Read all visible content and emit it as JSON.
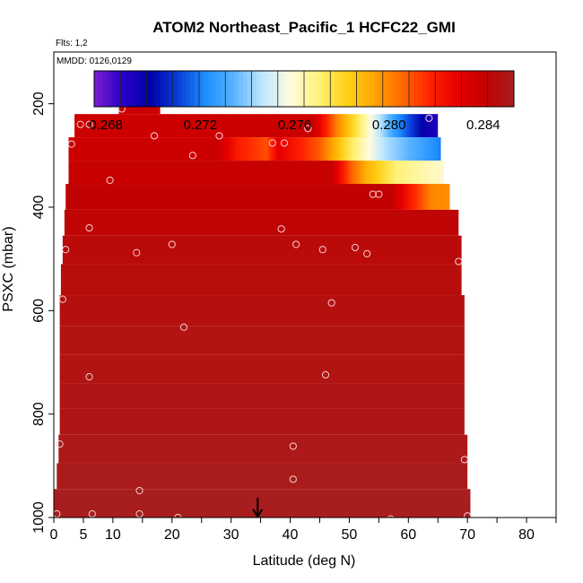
{
  "chart_data": {
    "type": "heatmap",
    "title": "ATOM2 Northeast_Pacific_1 HCFC22_GMI",
    "flights_label": "Flts: 1,2",
    "dates_label": "MMDD: 0126,0129",
    "xlabel": "Latitude (deg N)",
    "ylabel": "PSXC (mbar)",
    "xlim": [
      0,
      85
    ],
    "ylim": [
      1000,
      100
    ],
    "x_ticks": [
      0,
      5,
      10,
      20,
      30,
      40,
      50,
      60,
      70,
      80
    ],
    "x_minor_ticks": [
      0,
      5,
      10,
      15,
      20,
      25,
      30,
      35,
      40,
      45,
      50,
      55,
      60,
      65,
      70,
      75,
      80,
      85
    ],
    "y_ticks": [
      200,
      400,
      600,
      800,
      1000
    ],
    "colorbar": {
      "min": 0.2675,
      "max": 0.2853,
      "ticks": [
        0.268,
        0.272,
        0.276,
        0.28,
        0.284
      ],
      "tick_labels": [
        "0.268",
        "0.272",
        "0.276",
        "0.280",
        "0.284"
      ],
      "colors": [
        "#7b1fd1",
        "#2a00c8",
        "#0000a8",
        "#0a3ed8",
        "#1e90ff",
        "#5ab4ff",
        "#bfe6ff",
        "#fffbe0",
        "#fff27a",
        "#ffd21a",
        "#ffa500",
        "#ff6a00",
        "#ff2200",
        "#e60000",
        "#c40000",
        "#a52020"
      ]
    },
    "layers": [
      {
        "p_top": 170,
        "p_bot": 220,
        "lat_min": 11,
        "lat_max": 18,
        "value": 0.2838
      },
      {
        "p_top": 220,
        "p_bot": 265,
        "lat_min": 3.5,
        "lat_max": 65,
        "value": 0.2838,
        "gradient": [
          [
            44,
            0.2838
          ],
          [
            48,
            0.28
          ],
          [
            52,
            0.277
          ],
          [
            58,
            0.2725
          ],
          [
            63,
            0.2695
          ],
          [
            65,
            0.269
          ]
        ]
      },
      {
        "p_top": 265,
        "p_bot": 310,
        "lat_min": 2.5,
        "lat_max": 65.5,
        "value": 0.2838,
        "gradient": [
          [
            28,
            0.2838
          ],
          [
            31,
            0.282
          ],
          [
            36,
            0.281
          ],
          [
            38,
            0.283
          ],
          [
            45,
            0.2808
          ],
          [
            50,
            0.2775
          ],
          [
            56,
            0.2745
          ],
          [
            65.5,
            0.272
          ]
        ]
      },
      {
        "p_top": 310,
        "p_bot": 355,
        "lat_min": 2.5,
        "lat_max": 66,
        "value": 0.284,
        "gradient": [
          [
            47,
            0.284
          ],
          [
            50,
            0.281
          ],
          [
            53,
            0.279
          ],
          [
            58,
            0.277
          ],
          [
            66,
            0.276
          ]
        ]
      },
      {
        "p_top": 355,
        "p_bot": 405,
        "lat_min": 2,
        "lat_max": 67,
        "value": 0.2842,
        "gradient": [
          [
            57,
            0.2842
          ],
          [
            60,
            0.2822
          ],
          [
            64,
            0.28
          ],
          [
            67,
            0.2798
          ]
        ]
      },
      {
        "p_top": 405,
        "p_bot": 455,
        "lat_min": 1.8,
        "lat_max": 68.5,
        "value": 0.2843
      },
      {
        "p_top": 455,
        "p_bot": 510,
        "lat_min": 1.5,
        "lat_max": 69,
        "value": 0.2845
      },
      {
        "p_top": 510,
        "p_bot": 570,
        "lat_min": 1.2,
        "lat_max": 69,
        "value": 0.2846
      },
      {
        "p_top": 570,
        "p_bot": 630,
        "lat_min": 1,
        "lat_max": 69.5,
        "value": 0.2847
      },
      {
        "p_top": 630,
        "p_bot": 685,
        "lat_min": 1,
        "lat_max": 69.5,
        "value": 0.2848
      },
      {
        "p_top": 685,
        "p_bot": 740,
        "lat_min": 1,
        "lat_max": 69.5,
        "value": 0.2848
      },
      {
        "p_top": 740,
        "p_bot": 790,
        "lat_min": 1,
        "lat_max": 69.5,
        "value": 0.2849
      },
      {
        "p_top": 790,
        "p_bot": 840,
        "lat_min": 1,
        "lat_max": 69.5,
        "value": 0.2849
      },
      {
        "p_top": 840,
        "p_bot": 895,
        "lat_min": 0.8,
        "lat_max": 70,
        "value": 0.285
      },
      {
        "p_top": 895,
        "p_bot": 945,
        "lat_min": 0.5,
        "lat_max": 70,
        "value": 0.2851
      },
      {
        "p_top": 945,
        "p_bot": 1000,
        "lat_min": 0,
        "lat_max": 70.5,
        "value": 0.2852
      }
    ],
    "samples": [
      {
        "lat": 11.5,
        "p": 210
      },
      {
        "lat": 17.5,
        "p": 200
      },
      {
        "lat": 4.5,
        "p": 240
      },
      {
        "lat": 6,
        "p": 240
      },
      {
        "lat": 17,
        "p": 262
      },
      {
        "lat": 28,
        "p": 262
      },
      {
        "lat": 43,
        "p": 248
      },
      {
        "lat": 63.5,
        "p": 228
      },
      {
        "lat": 3,
        "p": 278
      },
      {
        "lat": 23.5,
        "p": 300
      },
      {
        "lat": 37,
        "p": 276
      },
      {
        "lat": 39,
        "p": 276
      },
      {
        "lat": 9.5,
        "p": 348
      },
      {
        "lat": 54,
        "p": 375
      },
      {
        "lat": 55,
        "p": 375
      },
      {
        "lat": 6,
        "p": 440
      },
      {
        "lat": 38.5,
        "p": 442
      },
      {
        "lat": 2,
        "p": 482
      },
      {
        "lat": 14,
        "p": 488
      },
      {
        "lat": 20,
        "p": 472
      },
      {
        "lat": 41,
        "p": 472
      },
      {
        "lat": 45.5,
        "p": 482
      },
      {
        "lat": 51,
        "p": 478
      },
      {
        "lat": 53,
        "p": 490
      },
      {
        "lat": 68.5,
        "p": 505
      },
      {
        "lat": 1.5,
        "p": 578
      },
      {
        "lat": 47,
        "p": 585
      },
      {
        "lat": 22,
        "p": 632
      },
      {
        "lat": 6,
        "p": 728
      },
      {
        "lat": 46,
        "p": 724
      },
      {
        "lat": 1,
        "p": 858
      },
      {
        "lat": 40.5,
        "p": 862
      },
      {
        "lat": 69.5,
        "p": 888
      },
      {
        "lat": 40.5,
        "p": 926
      },
      {
        "lat": 14.5,
        "p": 948
      },
      {
        "lat": 0.5,
        "p": 993
      },
      {
        "lat": 6.5,
        "p": 993
      },
      {
        "lat": 14.5,
        "p": 993
      },
      {
        "lat": 21,
        "p": 1000
      },
      {
        "lat": 47,
        "p": 1010
      },
      {
        "lat": 57,
        "p": 1003
      },
      {
        "lat": 70,
        "p": 997
      }
    ],
    "marker_lat": 34.5
  }
}
